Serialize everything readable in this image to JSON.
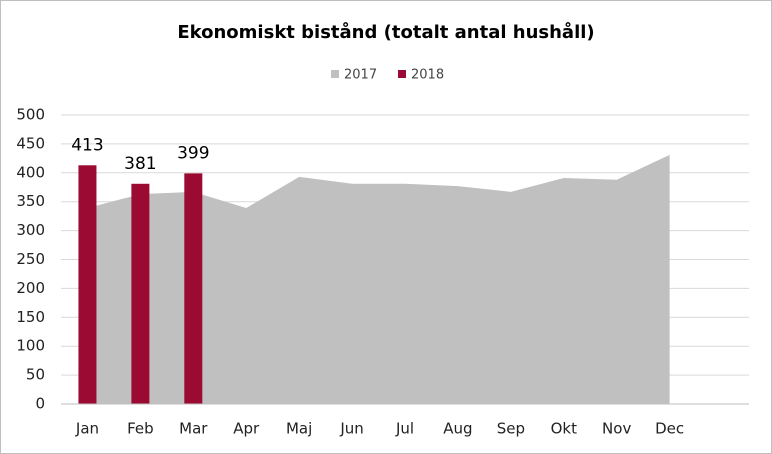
{
  "chart_data": {
    "type": "bar-area",
    "title": "Ekonomiskt bistånd (totalt antal hushåll)",
    "categories": [
      "Jan",
      "Feb",
      "Mar",
      "Apr",
      "Maj",
      "Jun",
      "Jul",
      "Aug",
      "Sep",
      "Okt",
      "Nov",
      "Dec",
      null
    ],
    "series": [
      {
        "name": "2017",
        "color": "#c0c0c0",
        "kind": "area",
        "values": [
          339,
          363,
          367,
          339,
          393,
          381,
          381,
          377,
          367,
          391,
          388,
          431,
          null
        ]
      },
      {
        "name": "2018",
        "color": "#9b0a33",
        "kind": "bar",
        "values": [
          413,
          381,
          399,
          null,
          null,
          null,
          null,
          null,
          null,
          null,
          null,
          null,
          null
        ]
      }
    ],
    "ylim": [
      0,
      500
    ],
    "yticks": [
      0,
      50,
      100,
      150,
      200,
      250,
      300,
      350,
      400,
      450,
      500
    ],
    "grid": true,
    "legend": "top"
  }
}
